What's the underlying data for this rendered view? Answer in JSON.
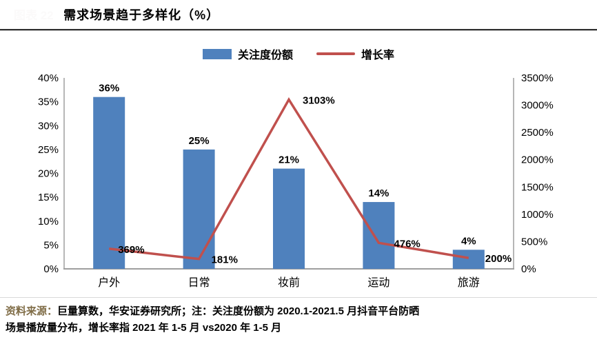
{
  "header": {
    "redacted_label": "图表 22",
    "title": "需求场景趋于多样化（%）"
  },
  "legend": [
    {
      "label": "关注度份额",
      "type": "bar",
      "color": "#4F81BD"
    },
    {
      "label": "增长率",
      "type": "line",
      "color": "#C0504D"
    }
  ],
  "chart_data": {
    "type": "bar+line combo",
    "title": "需求场景趋于多样化（%）",
    "categories": [
      "户外",
      "日常",
      "妆前",
      "运动",
      "旅游"
    ],
    "series": [
      {
        "name": "关注度份额",
        "type": "bar",
        "axis": "left",
        "color": "#4F81BD",
        "values": [
          36,
          25,
          21,
          14,
          4
        ],
        "labels": [
          "36%",
          "25%",
          "21%",
          "14%",
          "4%"
        ]
      },
      {
        "name": "增长率",
        "type": "line",
        "axis": "right",
        "color": "#C0504D",
        "values": [
          369,
          181,
          3103,
          476,
          200
        ],
        "labels": [
          "369%",
          "181%",
          "3103%",
          "476%",
          "200%"
        ]
      }
    ],
    "left_axis": {
      "min": 0,
      "max": 40,
      "step": 5,
      "ticks": [
        "40%",
        "35%",
        "30%",
        "25%",
        "20%",
        "15%",
        "10%",
        "5%",
        "0%"
      ]
    },
    "right_axis": {
      "min": 0,
      "max": 3500,
      "step": 500,
      "ticks": [
        "3500%",
        "3000%",
        "2500%",
        "2000%",
        "1500%",
        "1000%",
        "500%",
        "0%"
      ]
    },
    "grid": false,
    "legend_position": "top",
    "axis_line_color": "#9e9e9e"
  },
  "footer": {
    "source_prefix": "资料来源：",
    "line1": "巨量算数，华安证券研究所；注：关注度份额为 2020.1-2021.5 月抖音平台防晒",
    "line2": "场景播放量分布，增长率指 2021 年 1-5 月 vs2020 年 1-5 月",
    "source_color": "#7f6c46"
  }
}
